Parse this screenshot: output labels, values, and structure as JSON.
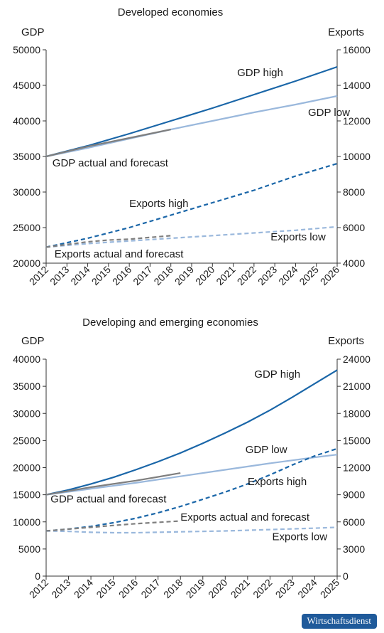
{
  "badge": "Wirtschaftsdienst",
  "colors": {
    "gdp_high": "#1a66a8",
    "gdp_low": "#9ab8dc",
    "actual": "#7f7f7f",
    "exports_high": "#1a66a8",
    "exports_low": "#9ab8dc",
    "axis": "#333333"
  },
  "chart_data": [
    {
      "type": "line",
      "title": "Developed economies",
      "ylabel_left": "GDP",
      "ylabel_right": "Exports",
      "x": [
        2012,
        2013,
        2014,
        2015,
        2016,
        2017,
        2018,
        2019,
        2020,
        2021,
        2022,
        2023,
        2024,
        2025,
        2026
      ],
      "ylim_left": [
        20000,
        50000
      ],
      "yticks_left": [
        20000,
        25000,
        30000,
        35000,
        40000,
        45000,
        50000
      ],
      "ylim_right": [
        4000,
        16000
      ],
      "yticks_right": [
        4000,
        6000,
        8000,
        10000,
        12000,
        14000,
        16000
      ],
      "grid": false,
      "series": [
        {
          "name": "GDP high",
          "axis": "left",
          "style": "solid",
          "color_key": "gdp_high",
          "x": [
            2012,
            2014,
            2016,
            2018,
            2020,
            2022,
            2024,
            2026
          ],
          "values": [
            35000,
            36500,
            38200,
            40000,
            41800,
            43700,
            45600,
            47600
          ]
        },
        {
          "name": "GDP low",
          "axis": "left",
          "style": "solid",
          "color_key": "gdp_low",
          "x": [
            2012,
            2014,
            2016,
            2018,
            2020,
            2022,
            2024,
            2026
          ],
          "values": [
            35000,
            36200,
            37500,
            38800,
            40000,
            41200,
            42300,
            43500
          ]
        },
        {
          "name": "GDP actual and forecast",
          "axis": "left",
          "style": "solid",
          "color_key": "actual",
          "x": [
            2012,
            2013,
            2014,
            2015,
            2016,
            2017,
            2018
          ],
          "values": [
            35000,
            35700,
            36400,
            37000,
            37600,
            38200,
            38800
          ]
        },
        {
          "name": "Exports high",
          "axis": "right",
          "style": "dashed",
          "color_key": "exports_high",
          "x": [
            2012,
            2014,
            2016,
            2018,
            2020,
            2022,
            2024,
            2026
          ],
          "values": [
            4900,
            5400,
            6000,
            6700,
            7400,
            8100,
            8900,
            9600
          ]
        },
        {
          "name": "Exports low",
          "axis": "right",
          "style": "dashed",
          "color_key": "exports_low",
          "x": [
            2012,
            2014,
            2016,
            2018,
            2020,
            2022,
            2024,
            2026
          ],
          "values": [
            4900,
            5100,
            5250,
            5400,
            5550,
            5700,
            5850,
            6050
          ]
        },
        {
          "name": "Exports actual and forecast",
          "axis": "right",
          "style": "dashed",
          "color_key": "actual",
          "x": [
            2012,
            2013,
            2014,
            2015,
            2016,
            2017,
            2018
          ],
          "values": [
            4900,
            5050,
            5200,
            5300,
            5350,
            5450,
            5550
          ]
        }
      ],
      "annotations": [
        {
          "text": "GDP high",
          "x": 2023.4,
          "y": 46300,
          "axis": "left",
          "anchor": "end"
        },
        {
          "text": "GDP low",
          "x": 2024.6,
          "y": 40700,
          "axis": "left",
          "anchor": "start"
        },
        {
          "text": "GDP actual and forecast",
          "x": 2012.3,
          "y": 33600,
          "axis": "left",
          "anchor": "start"
        },
        {
          "text": "Exports high",
          "x": 2016.0,
          "y": 27900,
          "axis": "left",
          "anchor": "start"
        },
        {
          "text": "Exports low",
          "x": 2022.8,
          "y": 23200,
          "axis": "left",
          "anchor": "start"
        },
        {
          "text": "Exports actual and forecast",
          "x": 2012.4,
          "y": 20800,
          "axis": "left",
          "anchor": "start"
        }
      ]
    },
    {
      "type": "line",
      "title": "Developing and emerging economies",
      "ylabel_left": "GDP",
      "ylabel_right": "Exports",
      "x": [
        2012,
        2013,
        2014,
        2015,
        2016,
        2017,
        2018,
        2019,
        2020,
        2021,
        2022,
        2023,
        2024,
        2025
      ],
      "ylim_left": [
        0,
        40000
      ],
      "yticks_left": [
        0,
        5000,
        10000,
        15000,
        20000,
        25000,
        30000,
        35000,
        40000
      ],
      "ylim_right": [
        0,
        24000
      ],
      "yticks_right": [
        0,
        3000,
        6000,
        9000,
        12000,
        15000,
        18000,
        21000,
        24000
      ],
      "grid": false,
      "series": [
        {
          "name": "GDP high",
          "axis": "left",
          "style": "solid",
          "color_key": "gdp_high",
          "x": [
            2012,
            2013,
            2014,
            2015,
            2016,
            2017,
            2018,
            2019,
            2020,
            2021,
            2022,
            2023,
            2024,
            2025
          ],
          "values": [
            15000,
            15900,
            17000,
            18200,
            19600,
            21100,
            22700,
            24500,
            26400,
            28400,
            30600,
            33000,
            35500,
            38000
          ]
        },
        {
          "name": "GDP low",
          "axis": "left",
          "style": "solid",
          "color_key": "gdp_low",
          "x": [
            2012,
            2014,
            2016,
            2018,
            2020,
            2022,
            2024,
            2025
          ],
          "values": [
            15000,
            16100,
            17200,
            18400,
            19600,
            20800,
            21900,
            22400
          ]
        },
        {
          "name": "GDP actual and forecast",
          "axis": "left",
          "style": "solid",
          "color_key": "actual",
          "x": [
            2012,
            2013,
            2014,
            2015,
            2016,
            2017,
            2018
          ],
          "values": [
            15000,
            15700,
            16400,
            17000,
            17600,
            18300,
            19000
          ]
        },
        {
          "name": "Exports high",
          "axis": "right",
          "style": "dashed",
          "color_key": "exports_high",
          "x": [
            2012,
            2013,
            2014,
            2015,
            2016,
            2017,
            2018,
            2019,
            2020,
            2021,
            2022,
            2023,
            2024,
            2025
          ],
          "values": [
            5000,
            5200,
            5500,
            5900,
            6400,
            7000,
            7700,
            8500,
            9300,
            10200,
            11200,
            12300,
            13300,
            14100
          ]
        },
        {
          "name": "Exports low",
          "axis": "right",
          "style": "dashed",
          "color_key": "exports_low",
          "x": [
            2012,
            2013,
            2014,
            2015,
            2016,
            2018,
            2020,
            2022,
            2024,
            2025
          ],
          "values": [
            5000,
            4950,
            4850,
            4800,
            4800,
            4900,
            5000,
            5150,
            5300,
            5400
          ]
        },
        {
          "name": "Exports actual and forecast",
          "axis": "right",
          "style": "dashed",
          "color_key": "actual",
          "x": [
            2012,
            2013,
            2014,
            2015,
            2016,
            2017,
            2018
          ],
          "values": [
            5000,
            5200,
            5400,
            5600,
            5800,
            5950,
            6100
          ]
        }
      ],
      "annotations": [
        {
          "text": "GDP high",
          "x": 2021.3,
          "y": 36600,
          "axis": "left",
          "anchor": "start"
        },
        {
          "text": "GDP low",
          "x": 2020.9,
          "y": 22700,
          "axis": "left",
          "anchor": "start"
        },
        {
          "text": "GDP actual and forecast",
          "x": 2012.2,
          "y": 13600,
          "axis": "left",
          "anchor": "start"
        },
        {
          "text": "Exports high",
          "x": 2021.0,
          "y": 16800,
          "axis": "left",
          "anchor": "start"
        },
        {
          "text": "Exports actual and forecast",
          "x": 2018.0,
          "y": 10200,
          "axis": "left",
          "anchor": "start"
        },
        {
          "text": "Exports low",
          "x": 2022.1,
          "y": 6600,
          "axis": "left",
          "anchor": "start"
        }
      ]
    }
  ]
}
